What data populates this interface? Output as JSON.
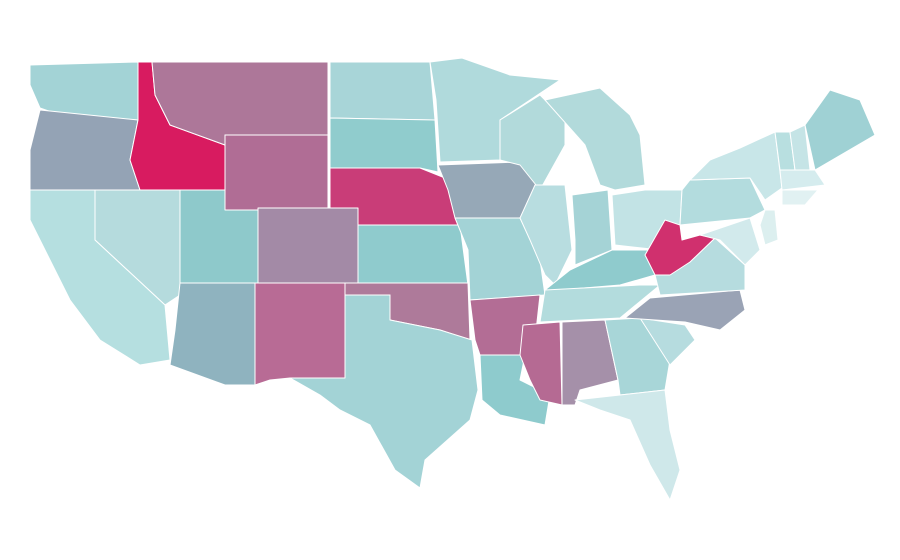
{
  "map": {
    "type": "choropleth",
    "stroke": "#ffffff",
    "background": "#ffffff",
    "fills": [
      "#a3d3d6",
      "#94a3b5",
      "#d81b60",
      "#ad7799",
      "#b06d95",
      "#b5dbdd",
      "#b5dfe0",
      "#8ec9cb",
      "#a38aa6",
      "#8fb3bf",
      "#b86b95",
      "#a8d5d8",
      "#90cccd",
      "#c93d78",
      "#8fcbcd",
      "#ae7a9a",
      "#a3d3d6",
      "#b0dadc",
      "#96a8b7",
      "#a3d3d6",
      "#b36d95",
      "#8ecbcd",
      "#b2dadb",
      "#b8dde0",
      "#b2dadb",
      "#a5d3d6",
      "#c2e3e5",
      "#8fcbcd",
      "#b3dcdd",
      "#b56a93",
      "#a590a9",
      "#a8d6d8",
      "#cfe8ea",
      "#b6dcdf",
      "#9aa3b5",
      "#b6dcdf",
      "#d0306e",
      "#b3dcde",
      "#c8e6e8",
      "#b8dfe0",
      "#c5e4e6",
      "#9fd1d4",
      "#d5ecee",
      "#e1f1f2",
      "#dcefef",
      "#d2eaec"
    ]
  }
}
